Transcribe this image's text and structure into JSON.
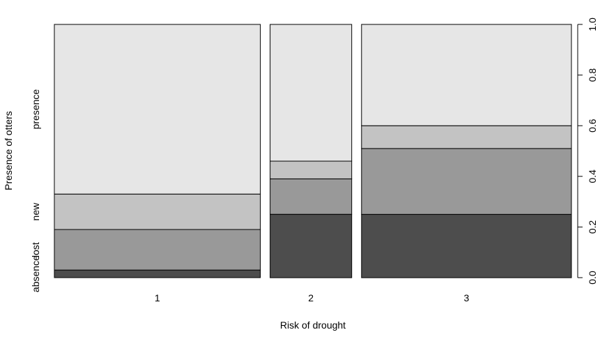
{
  "chart_data": {
    "type": "mosaic",
    "xlabel": "Risk of drought",
    "ylabel": "Presence of otters",
    "categories": [
      "1",
      "2",
      "3"
    ],
    "column_widths": [
      0.53,
      0.21,
      0.54
    ],
    "levels": [
      "absence",
      "lost",
      "new",
      "presence"
    ],
    "series": [
      {
        "name": "absence",
        "values": [
          0.03,
          0.25,
          0.25
        ],
        "color": "#4d4d4d"
      },
      {
        "name": "lost",
        "values": [
          0.16,
          0.14,
          0.26
        ],
        "color": "#999999"
      },
      {
        "name": "new",
        "values": [
          0.14,
          0.07,
          0.09
        ],
        "color": "#c3c3c3"
      },
      {
        "name": "presence",
        "values": [
          0.67,
          0.54,
          0.4
        ],
        "color": "#e6e6e6"
      }
    ],
    "y_axis_right": {
      "ticks": [
        "0.0",
        "0.2",
        "0.4",
        "0.6",
        "0.8",
        "1.0"
      ],
      "ylim": [
        0,
        1
      ]
    },
    "grid": false,
    "legend": "none"
  }
}
